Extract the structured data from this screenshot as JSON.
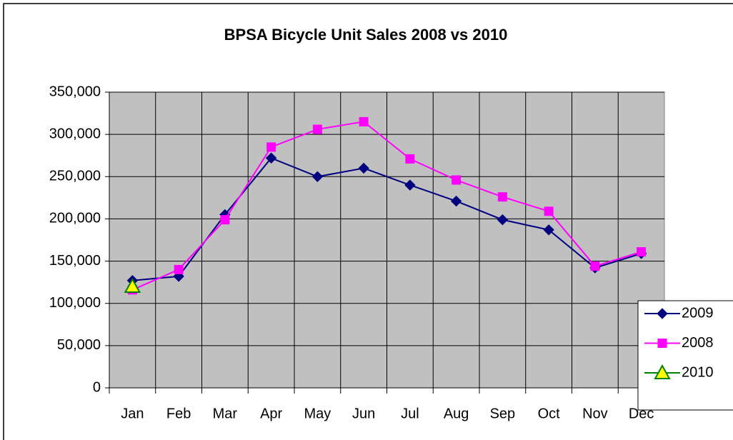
{
  "chart_data": {
    "type": "line",
    "title": "BPSA Bicycle Unit Sales 2008 vs 2010",
    "categories": [
      "Jan",
      "Feb",
      "Mar",
      "Apr",
      "May",
      "Jun",
      "Jul",
      "Aug",
      "Sep",
      "Oct",
      "Nov",
      "Dec"
    ],
    "series": [
      {
        "name": "2009",
        "color": "#000080",
        "marker": "diamond",
        "values": [
          127000,
          132000,
          205000,
          272000,
          250000,
          260000,
          240000,
          221000,
          199000,
          187000,
          142000,
          159000
        ]
      },
      {
        "name": "2008",
        "color": "#ff00ff",
        "marker": "square",
        "values": [
          116000,
          140000,
          199000,
          285000,
          306000,
          315000,
          271000,
          246000,
          226000,
          209000,
          144000,
          161000
        ]
      },
      {
        "name": "2010",
        "color": "#008000",
        "marker": "triangle",
        "marker_fill": "#ffff00",
        "values": [
          120000,
          null,
          null,
          null,
          null,
          null,
          null,
          null,
          null,
          null,
          null,
          null
        ]
      }
    ],
    "ylim": [
      0,
      350000
    ],
    "yticks": [
      0,
      {
        "value": 50000,
        "label": "50,000"
      },
      {
        "value": 100000,
        "label": "100,000"
      },
      {
        "value": 150000,
        "label": "150,000"
      },
      {
        "value": 200000,
        "label": "200,000"
      },
      {
        "value": 250000,
        "label": "250,000"
      },
      {
        "value": 300000,
        "label": "300,000"
      },
      {
        "value": 350000,
        "label": "350,000"
      }
    ],
    "grid": true,
    "plot_background": "#c0c0c0",
    "legend": "right"
  }
}
